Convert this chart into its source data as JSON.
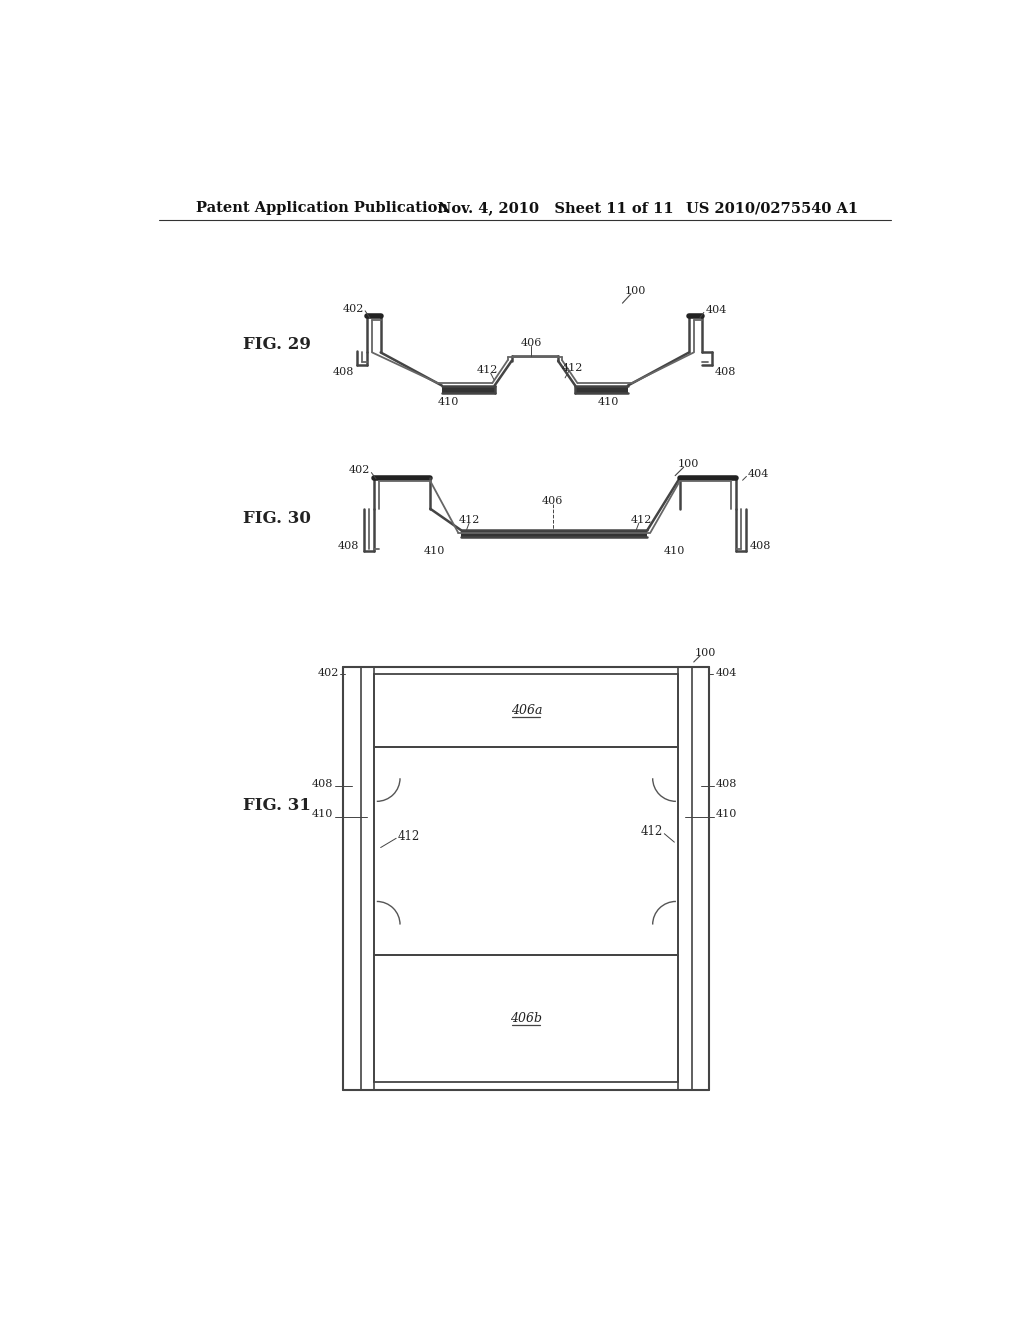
{
  "bg_color": "#ffffff",
  "text_color": "#222222",
  "line_color": "#444444",
  "header_left": "Patent Application Publication",
  "header_mid": "Nov. 4, 2010   Sheet 11 of 11",
  "header_right": "US 2010/0275540 A1",
  "fig29_label": "FIG. 29",
  "fig30_label": "FIG. 30",
  "fig31_label": "FIG. 31"
}
